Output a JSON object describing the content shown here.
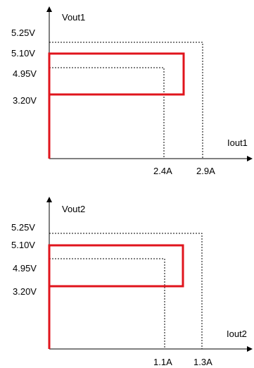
{
  "colors": {
    "background": "#ffffff",
    "axis": "#000000",
    "limit_line": "#000000",
    "ocp_curve": "#e0141c"
  },
  "panels": [
    {
      "y_label": "Vout1",
      "x_label": "Iout1",
      "y_ticks": [
        "5.25V",
        "5.10V",
        "4.95V",
        "3.20V"
      ],
      "x_ticks": [
        "2.4A",
        "2.9A"
      ]
    },
    {
      "y_label": "Vout2",
      "x_label": "Iout2",
      "y_ticks": [
        "5.25V",
        "5.10V",
        "4.95V",
        "3.20V"
      ],
      "x_ticks": [
        "1.1A",
        "1.3A"
      ]
    }
  ]
}
